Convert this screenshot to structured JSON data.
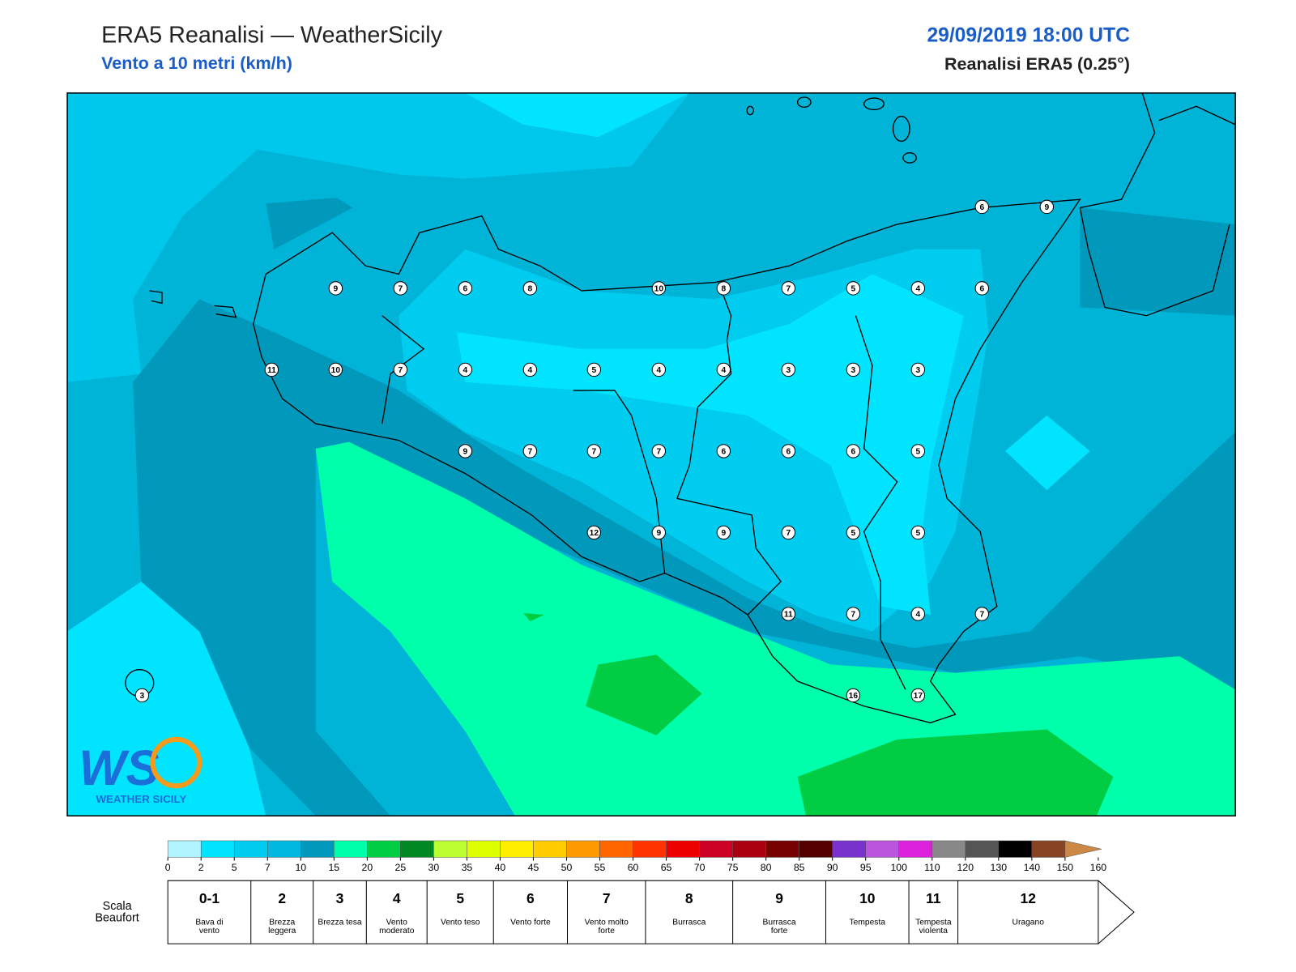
{
  "header": {
    "title": "ERA5 Reanalisi — WeatherSicily",
    "subtitle": "Vento a 10 metri (km/h)",
    "datetime": "29/09/2019 18:00 UTC",
    "source": "Reanalisi ERA5 (0.25°)"
  },
  "map": {
    "station_values": [
      6,
      9,
      9,
      7,
      6,
      8,
      10,
      8,
      7,
      5,
      4,
      6,
      11,
      10,
      7,
      4,
      4,
      5,
      4,
      4,
      3,
      3,
      3,
      9,
      7,
      7,
      7,
      6,
      6,
      6,
      5,
      12,
      9,
      9,
      7,
      5,
      5,
      11,
      7,
      4,
      7,
      16,
      17,
      3
    ],
    "logo": "WEATHER SICILY"
  },
  "colorbar": {
    "ticks": [
      0,
      2,
      5,
      7,
      10,
      15,
      20,
      25,
      30,
      35,
      40,
      45,
      50,
      55,
      60,
      65,
      70,
      75,
      80,
      85,
      90,
      95,
      100,
      110,
      120,
      130,
      140,
      150,
      160
    ],
    "colors": [
      "#b0f4ff",
      "#00e4ff",
      "#00ccf0",
      "#00b8e0",
      "#0099bb",
      "#00ffaa",
      "#00cc44",
      "#008822",
      "#bbff33",
      "#ddff00",
      "#ffee00",
      "#ffcc00",
      "#ff9900",
      "#ff6600",
      "#ff3300",
      "#ee0000",
      "#cc0022",
      "#aa0011",
      "#770000",
      "#550000",
      "#7733cc",
      "#bb55dd",
      "#dd22dd",
      "#888888",
      "#555555",
      "#000000",
      "#884422",
      "#cc8844"
    ]
  },
  "beaufort": {
    "label": "Scala Beaufort",
    "levels": [
      {
        "force": "0-1",
        "desc": "Bava di vento"
      },
      {
        "force": "2",
        "desc": "Brezza leggera"
      },
      {
        "force": "3",
        "desc": "Brezza tesa"
      },
      {
        "force": "4",
        "desc": "Vento moderato"
      },
      {
        "force": "5",
        "desc": "Vento teso"
      },
      {
        "force": "6",
        "desc": "Vento forte"
      },
      {
        "force": "7",
        "desc": "Vento molto forte"
      },
      {
        "force": "8",
        "desc": "Burrasca"
      },
      {
        "force": "9",
        "desc": "Burrasca forte"
      },
      {
        "force": "10",
        "desc": "Tempesta"
      },
      {
        "force": "11",
        "desc": "Tempesta violenta"
      },
      {
        "force": "12",
        "desc": "Uragano"
      }
    ]
  }
}
